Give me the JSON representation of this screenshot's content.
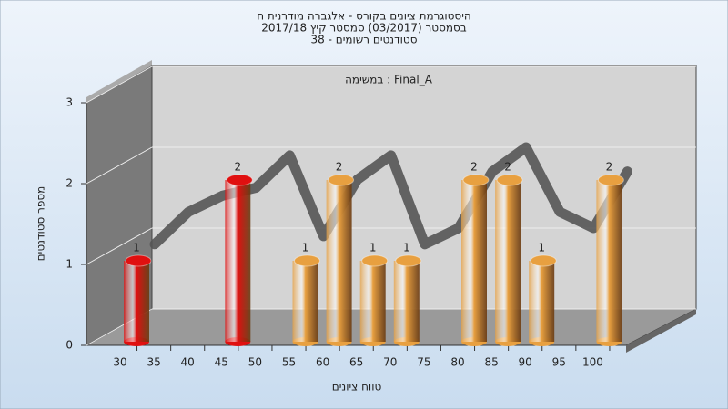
{
  "chart_data": {
    "type": "bar",
    "title": [
      "היסטוגרמת ציונים בקורס - אלגברה מודרנית ח",
      "בסמסטר  (03/2017)  סמסטר קיץ  2017/18",
      "סטודנטים רשומים - 38"
    ],
    "annotation": "Final_A : במשימה",
    "x_label": "טווח ציונים",
    "y_label": "מספר סטודנטים",
    "categories": [
      "30",
      "35",
      "40",
      "45",
      "50",
      "55",
      "60",
      "65",
      "70",
      "75",
      "80",
      "85",
      "90",
      "95",
      "100"
    ],
    "values": [
      1,
      0,
      0,
      2,
      0,
      1,
      2,
      1,
      1,
      0,
      2,
      2,
      1,
      0,
      2
    ],
    "colors": [
      "#e01010",
      "#e01010",
      "#e01010",
      "#e01010",
      "#e8a040",
      "#e8a040",
      "#e8a040",
      "#e8a040",
      "#e8a040",
      "#e8a040",
      "#e8a040",
      "#e8a040",
      "#e8a040",
      "#e8a040",
      "#e8a040"
    ],
    "trend": {
      "color": "#555555",
      "values": [
        0.8,
        1.2,
        1.4,
        1.5,
        1.9,
        0.9,
        1.6,
        1.9,
        0.8,
        1.0,
        1.7,
        2.0,
        1.2,
        1.0,
        1.7
      ]
    },
    "ylim": [
      0,
      3
    ],
    "yticks": [
      0,
      1,
      2,
      3
    ],
    "grid": true
  }
}
